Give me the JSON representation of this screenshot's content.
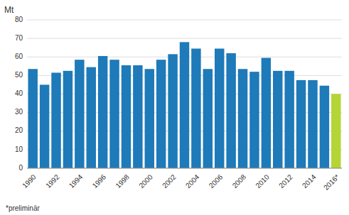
{
  "chart_data": {
    "type": "bar",
    "y_label": "Mt",
    "footnote": "*preliminär",
    "categories": [
      "1990",
      null,
      "1992",
      null,
      "1994",
      null,
      "1996",
      null,
      "1998",
      null,
      "2000",
      null,
      "2002",
      null,
      "2004",
      null,
      "2006",
      null,
      "2008",
      null,
      "2010",
      null,
      "2012",
      null,
      "2014",
      null,
      "2016*"
    ],
    "values": [
      53.5,
      45.0,
      51.5,
      52.5,
      58.5,
      54.5,
      60.5,
      58.5,
      55.5,
      55.5,
      53.5,
      58.5,
      61.5,
      68.0,
      64.5,
      53.5,
      64.5,
      62.0,
      53.5,
      52.0,
      59.5,
      52.5,
      52.5,
      47.5,
      47.5,
      44.5,
      40.0
    ],
    "colors": [
      "#1e7ab8",
      "#1e7ab8",
      "#1e7ab8",
      "#1e7ab8",
      "#1e7ab8",
      "#1e7ab8",
      "#1e7ab8",
      "#1e7ab8",
      "#1e7ab8",
      "#1e7ab8",
      "#1e7ab8",
      "#1e7ab8",
      "#1e7ab8",
      "#1e7ab8",
      "#1e7ab8",
      "#1e7ab8",
      "#1e7ab8",
      "#1e7ab8",
      "#1e7ab8",
      "#1e7ab8",
      "#1e7ab8",
      "#1e7ab8",
      "#1e7ab8",
      "#1e7ab8",
      "#1e7ab8",
      "#1e7ab8",
      "#b5d435"
    ],
    "ylim": [
      0,
      80
    ],
    "yticks": [
      0,
      10,
      20,
      30,
      40,
      50,
      60,
      70,
      80
    ],
    "grid": true
  }
}
